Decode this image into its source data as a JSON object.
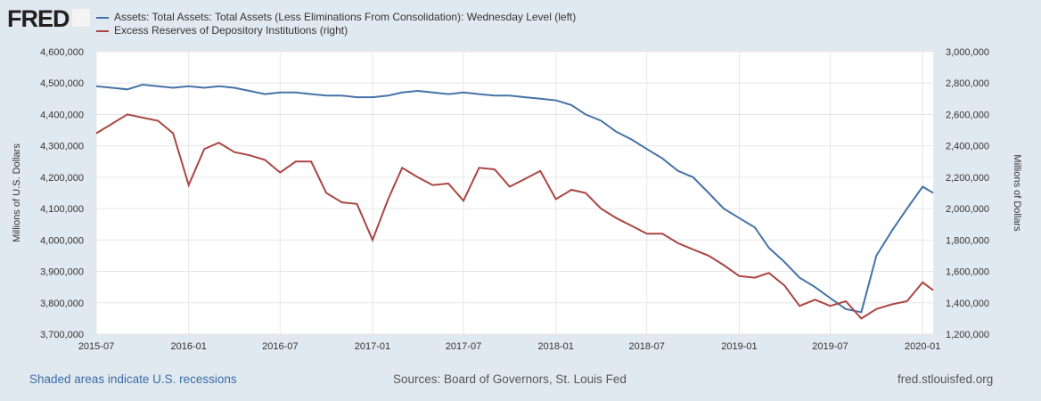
{
  "logo": "FRED",
  "chart_data": {
    "type": "line",
    "xlim": [
      "2015-07-01",
      "2020-01-22"
    ],
    "x_ticks": [
      "2015-07",
      "2016-01",
      "2016-07",
      "2017-01",
      "2017-07",
      "2018-01",
      "2018-07",
      "2019-01",
      "2019-07",
      "2020-01"
    ],
    "left_axis": {
      "label": "Millions of U.S. Dollars",
      "ylim": [
        3700000,
        4600000
      ],
      "ticks": [
        "3,700,000",
        "3,800,000",
        "3,900,000",
        "4,000,000",
        "4,100,000",
        "4,200,000",
        "4,300,000",
        "4,400,000",
        "4,500,000",
        "4,600,000"
      ]
    },
    "right_axis": {
      "label": "Millions of Dollars",
      "ylim": [
        1200000,
        3000000
      ],
      "ticks": [
        "1,200,000",
        "1,400,000",
        "1,600,000",
        "1,800,000",
        "2,000,000",
        "2,200,000",
        "2,400,000",
        "2,600,000",
        "2,800,000",
        "3,000,000"
      ]
    },
    "grid": true,
    "legend_placement": "top",
    "dates": [
      "2015-07-01",
      "2015-08-01",
      "2015-09-01",
      "2015-10-01",
      "2015-11-01",
      "2015-12-01",
      "2016-01-01",
      "2016-02-01",
      "2016-03-01",
      "2016-04-01",
      "2016-05-01",
      "2016-06-01",
      "2016-07-01",
      "2016-08-01",
      "2016-09-01",
      "2016-10-01",
      "2016-11-01",
      "2016-12-01",
      "2017-01-01",
      "2017-02-01",
      "2017-03-01",
      "2017-04-01",
      "2017-05-01",
      "2017-06-01",
      "2017-07-01",
      "2017-08-01",
      "2017-09-01",
      "2017-10-01",
      "2017-11-01",
      "2017-12-01",
      "2018-01-01",
      "2018-02-01",
      "2018-03-01",
      "2018-04-01",
      "2018-05-01",
      "2018-06-01",
      "2018-07-01",
      "2018-08-01",
      "2018-09-01",
      "2018-10-01",
      "2018-11-01",
      "2018-12-01",
      "2019-01-01",
      "2019-02-01",
      "2019-03-01",
      "2019-04-01",
      "2019-05-01",
      "2019-06-01",
      "2019-07-01",
      "2019-08-01",
      "2019-09-01",
      "2019-10-01",
      "2019-11-01",
      "2019-12-01",
      "2020-01-01",
      "2020-01-22"
    ],
    "series": [
      {
        "name": "Assets: Total Assets: Total Assets (Less Eliminations From Consolidation): Wednesday Level (left)",
        "axis": "left",
        "color": "#4572a7",
        "values": [
          4490000,
          4485000,
          4480000,
          4495000,
          4490000,
          4485000,
          4490000,
          4485000,
          4490000,
          4485000,
          4475000,
          4465000,
          4470000,
          4470000,
          4465000,
          4460000,
          4460000,
          4455000,
          4455000,
          4460000,
          4470000,
          4475000,
          4470000,
          4465000,
          4470000,
          4465000,
          4460000,
          4460000,
          4455000,
          4450000,
          4445000,
          4430000,
          4400000,
          4380000,
          4345000,
          4320000,
          4290000,
          4260000,
          4220000,
          4200000,
          4150000,
          4100000,
          4070000,
          4040000,
          3975000,
          3930000,
          3880000,
          3850000,
          3815000,
          3780000,
          3770000,
          3950000,
          4030000,
          4100000,
          4170000,
          4150000
        ]
      },
      {
        "name": "Excess Reserves of Depository Institutions (right)",
        "axis": "right",
        "color": "#aa4643",
        "values": [
          2480000,
          2540000,
          2600000,
          2580000,
          2560000,
          2480000,
          2150000,
          2380000,
          2420000,
          2360000,
          2340000,
          2310000,
          2230000,
          2300000,
          2300000,
          2100000,
          2040000,
          2030000,
          1800000,
          2060000,
          2260000,
          2200000,
          2150000,
          2160000,
          2050000,
          2260000,
          2250000,
          2140000,
          2190000,
          2240000,
          2060000,
          2120000,
          2100000,
          2000000,
          1940000,
          1890000,
          1840000,
          1840000,
          1780000,
          1740000,
          1700000,
          1640000,
          1570000,
          1560000,
          1590000,
          1510000,
          1380000,
          1420000,
          1380000,
          1410000,
          1300000,
          1360000,
          1390000,
          1410000,
          1530000,
          1480000
        ]
      }
    ]
  },
  "footer": {
    "recessions": "Shaded areas indicate U.S. recessions",
    "sources": "Sources: Board of Governors, St. Louis Fed",
    "site": "fred.stlouisfed.org"
  }
}
